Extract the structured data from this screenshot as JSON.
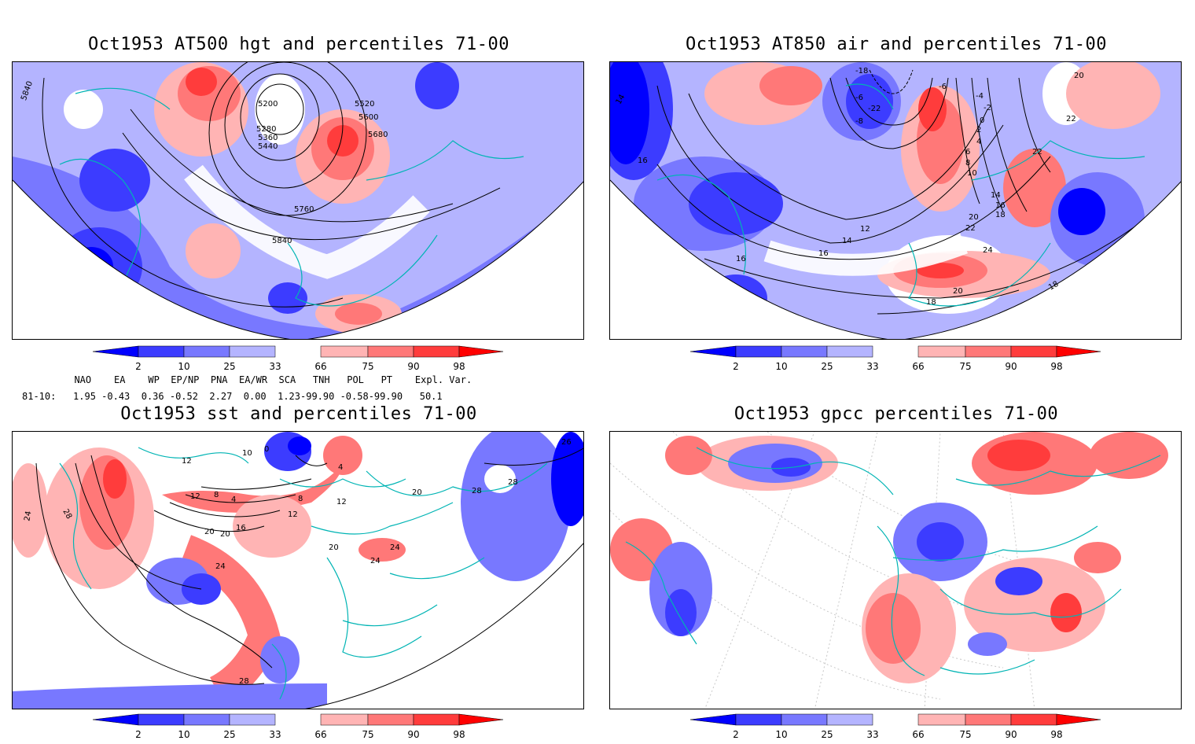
{
  "panels": [
    {
      "id": "hgt500",
      "title": "Oct1953 AT500 hgt and percentiles 71-00",
      "contour_labels": [
        "5840",
        "5200",
        "5280",
        "5360",
        "5440",
        "5520",
        "5600",
        "5680",
        "5760",
        "5840"
      ]
    },
    {
      "id": "air850",
      "title": "Oct1953 AT850 air and percentiles 71-00",
      "contour_labels": [
        "-18",
        "-6",
        "-4",
        "-2",
        "0",
        "2",
        "4",
        "6",
        "8",
        "10",
        "12",
        "14",
        "16",
        "18",
        "20",
        "22",
        "24",
        "20",
        "18",
        "16",
        "14",
        "16",
        "18",
        "22",
        "22",
        "20",
        "16",
        "14",
        "-8",
        "-6",
        "-22"
      ]
    },
    {
      "id": "sst",
      "title": "Oct1953 sst and percentiles 71-00",
      "contour_labels": [
        "24",
        "28",
        "12",
        "12",
        "8",
        "4",
        "16",
        "20",
        "24",
        "28",
        "10",
        "0",
        "4",
        "8",
        "12",
        "20",
        "24",
        "24",
        "20",
        "28",
        "26",
        "28",
        "20",
        "12"
      ]
    },
    {
      "id": "gpcc",
      "title": "Oct1953 gpcc percentiles 71-00",
      "contour_labels": []
    }
  ],
  "colorbar": {
    "ticks": [
      "2",
      "10",
      "25",
      "33",
      "66",
      "75",
      "90",
      "98"
    ],
    "colors": {
      "blue_dark": "#0000ff",
      "blue_mid": "#3c3cff",
      "blue_light": "#7878ff",
      "blue_pale": "#b4b4ff",
      "red_pale": "#ffb4b4",
      "red_light": "#ff7878",
      "red_mid": "#ff3c3c",
      "red_dark": "#ff0000",
      "coast": "#00b4b4"
    }
  },
  "indices": {
    "header": "  NAO    EA    WP  EP/NP  PNA  EA/WR  SCA   TNH   POL   PT    Expl. Var.",
    "row": "81-10:   1.95 -0.43  0.36 -0.52  2.27  0.00  1.23-99.90 -0.58-99.90   50.1"
  }
}
